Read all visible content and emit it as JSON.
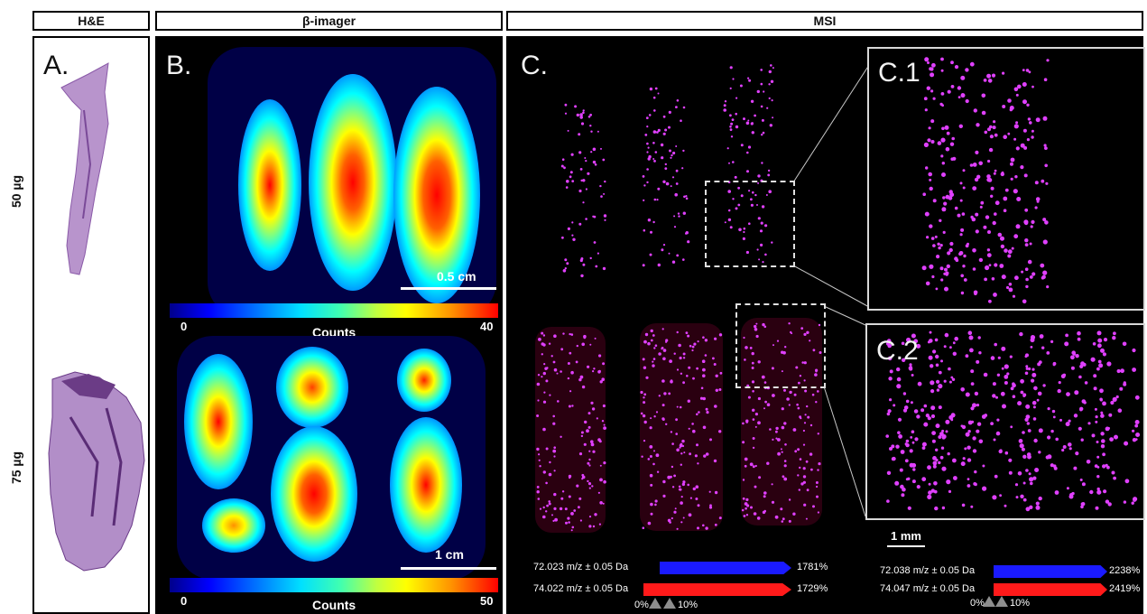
{
  "headers": {
    "he": "H&E",
    "beta": "β-imager",
    "msi": "MSI"
  },
  "rows": {
    "top": "50 µg",
    "bottom": "75 µg"
  },
  "panels": {
    "a": "A.",
    "b": "B.",
    "c": "C.",
    "c1": "C.1",
    "c2": "C.2"
  },
  "beta_top": {
    "scale": "0.5 cm",
    "cmin": "0",
    "cmax": "40",
    "clabel": "Counts"
  },
  "beta_bottom": {
    "scale": "1 cm",
    "cmin": "0",
    "cmax": "50",
    "clabel": "Counts"
  },
  "msi_scale": "1 mm",
  "legend_left": {
    "row1": {
      "mz": "72.023 m/z ± 0.05 Da",
      "pct": "1781%"
    },
    "row2": {
      "mz": "74.022 m/z ± 0.05 Da",
      "pct": "1729%"
    },
    "lo": "0%",
    "hi": "10%"
  },
  "legend_right": {
    "row1": {
      "mz": "72.038 m/z ± 0.05 Da",
      "pct": "2238%"
    },
    "row2": {
      "mz": "74.047 m/z ± 0.05 Da",
      "pct": "2419%"
    },
    "lo": "0%",
    "hi": "10%"
  },
  "colors": {
    "blue_channel": "#1a1aff",
    "red_channel": "#ff1a1a",
    "ion_dots": "#e040ff"
  }
}
